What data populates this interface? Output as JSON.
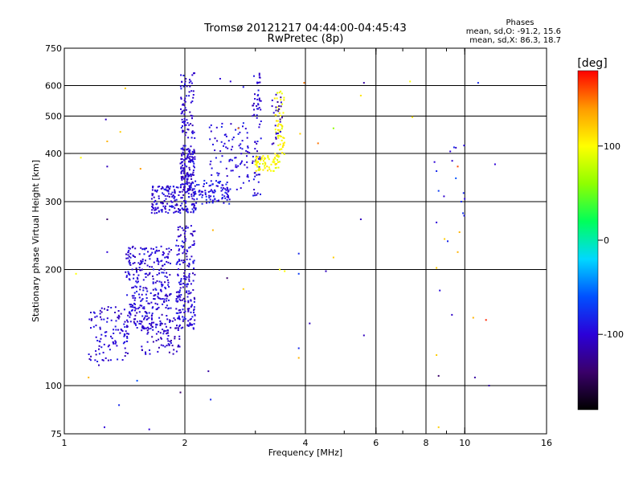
{
  "chart_data": {
    "type": "scatter",
    "title": "Tromsø 20121217 04:44:00-04:45:43",
    "subtitle": "RwPretec (8p)",
    "xlabel": "Frequency [MHz]",
    "ylabel": "Stationary phase Virtual Height [km]",
    "x_scale": "log",
    "y_scale": "log",
    "xlim": [
      1,
      16
    ],
    "ylim": [
      75,
      750
    ],
    "x_ticks": [
      {
        "value": 1,
        "label": "1"
      },
      {
        "value": 2,
        "label": "2"
      },
      {
        "value": 4,
        "label": "4"
      },
      {
        "value": 6,
        "label": "6"
      },
      {
        "value": 8,
        "label": "8"
      },
      {
        "value": 10,
        "label": "10"
      },
      {
        "value": 16,
        "label": "16"
      }
    ],
    "x_gridlines": [
      2,
      4,
      6,
      8,
      10
    ],
    "y_ticks": [
      {
        "value": 75,
        "label": "75"
      },
      {
        "value": 100,
        "label": "100"
      },
      {
        "value": 200,
        "label": "200"
      },
      {
        "value": 300,
        "label": "300"
      },
      {
        "value": 400,
        "label": "400"
      },
      {
        "value": 500,
        "label": "500"
      },
      {
        "value": 600,
        "label": "600"
      },
      {
        "value": 750,
        "label": "750"
      }
    ],
    "y_gridlines": [
      100,
      200,
      300,
      400,
      500,
      600
    ],
    "stats": {
      "title": "Phases",
      "line_o": "mean, sd,O: -91.2, 15.6",
      "line_x": "mean, sd,X: 86.3, 18.7"
    },
    "colorbar": {
      "label": "[deg]",
      "range": [
        -180,
        180
      ],
      "ticks": [
        {
          "value": 100,
          "label": "100"
        },
        {
          "value": 0,
          "label": "0"
        },
        {
          "value": -100,
          "label": "-100"
        }
      ],
      "color_stops": [
        "#000000",
        "#3a006a",
        "#2b00d8",
        "#0050ff",
        "#00d8ff",
        "#00ff5a",
        "#8fff00",
        "#ffff00",
        "#ff9a00",
        "#ff0000"
      ]
    },
    "clusters": [
      {
        "f": [
          1.15,
          1.45
        ],
        "h": [
          115,
          160
        ],
        "phase": -100,
        "n": 110
      },
      {
        "f": [
          1.42,
          1.85
        ],
        "h": [
          140,
          230
        ],
        "phase": -100,
        "n": 320
      },
      {
        "f": [
          1.55,
          1.95
        ],
        "h": [
          120,
          150
        ],
        "phase": -105,
        "n": 90
      },
      {
        "f": [
          1.9,
          2.12
        ],
        "h": [
          140,
          260
        ],
        "phase": -100,
        "n": 200
      },
      {
        "f": [
          1.65,
          2.15
        ],
        "h": [
          280,
          330
        ],
        "phase": -100,
        "n": 180
      },
      {
        "f": [
          1.95,
          2.12
        ],
        "h": [
          320,
          420
        ],
        "phase": -100,
        "n": 140
      },
      {
        "f": [
          1.95,
          2.12
        ],
        "h": [
          430,
          650
        ],
        "phase": -100,
        "n": 80
      },
      {
        "f": [
          2.1,
          2.6
        ],
        "h": [
          295,
          340
        ],
        "phase": -90,
        "n": 90
      },
      {
        "f": [
          2.3,
          2.9
        ],
        "h": [
          320,
          480
        ],
        "phase": -95,
        "n": 90
      },
      {
        "f": [
          2.95,
          3.1
        ],
        "h": [
          300,
          650
        ],
        "phase": -100,
        "n": 70
      },
      {
        "f": [
          3.0,
          3.45
        ],
        "h": [
          360,
          395
        ],
        "phase": 100,
        "n": 70
      },
      {
        "f": [
          3.35,
          3.55
        ],
        "h": [
          380,
          580
        ],
        "phase": 100,
        "n": 60
      },
      {
        "f": [
          3.3,
          3.5
        ],
        "h": [
          420,
          570
        ],
        "phase": -110,
        "n": 25
      },
      {
        "f": [
          8.3,
          10.0
        ],
        "h": [
          150,
          420
        ],
        "phase": -95,
        "n": 10
      }
    ],
    "points": [
      {
        "f": 1.07,
        "h": 195,
        "phase": 100
      },
      {
        "f": 1.1,
        "h": 390,
        "phase": 100
      },
      {
        "f": 1.27,
        "h": 490,
        "phase": -110
      },
      {
        "f": 1.28,
        "h": 370,
        "phase": -110
      },
      {
        "f": 1.28,
        "h": 270,
        "phase": -140
      },
      {
        "f": 1.28,
        "h": 222,
        "phase": -100
      },
      {
        "f": 1.42,
        "h": 590,
        "phase": 120
      },
      {
        "f": 1.38,
        "h": 455,
        "phase": 120
      },
      {
        "f": 1.28,
        "h": 430,
        "phase": 130
      },
      {
        "f": 1.26,
        "h": 78,
        "phase": -100
      },
      {
        "f": 1.37,
        "h": 89,
        "phase": -80
      },
      {
        "f": 1.52,
        "h": 103,
        "phase": -60
      },
      {
        "f": 1.63,
        "h": 77,
        "phase": -100
      },
      {
        "f": 1.95,
        "h": 96,
        "phase": -140
      },
      {
        "f": 2.29,
        "h": 109,
        "phase": -120
      },
      {
        "f": 2.32,
        "h": 92,
        "phase": -80
      },
      {
        "f": 2.55,
        "h": 190,
        "phase": -140
      },
      {
        "f": 2.8,
        "h": 178,
        "phase": 120
      },
      {
        "f": 2.35,
        "h": 253,
        "phase": 130
      },
      {
        "f": 2.6,
        "h": 615,
        "phase": -100
      },
      {
        "f": 2.45,
        "h": 625,
        "phase": -100
      },
      {
        "f": 2.8,
        "h": 595,
        "phase": -90
      },
      {
        "f": 2.72,
        "h": 465,
        "phase": 150
      },
      {
        "f": 3.97,
        "h": 610,
        "phase": 150
      },
      {
        "f": 3.88,
        "h": 450,
        "phase": 120
      },
      {
        "f": 4.3,
        "h": 425,
        "phase": 150
      },
      {
        "f": 4.7,
        "h": 465,
        "phase": 60
      },
      {
        "f": 5.6,
        "h": 610,
        "phase": -120
      },
      {
        "f": 5.5,
        "h": 565,
        "phase": 110
      },
      {
        "f": 7.3,
        "h": 615,
        "phase": 100
      },
      {
        "f": 7.4,
        "h": 497,
        "phase": 110
      },
      {
        "f": 3.85,
        "h": 220,
        "phase": -80
      },
      {
        "f": 3.85,
        "h": 195,
        "phase": -70
      },
      {
        "f": 3.55,
        "h": 198,
        "phase": 100
      },
      {
        "f": 3.45,
        "h": 200,
        "phase": 100
      },
      {
        "f": 4.1,
        "h": 145,
        "phase": -110
      },
      {
        "f": 4.5,
        "h": 198,
        "phase": -110
      },
      {
        "f": 4.7,
        "h": 215,
        "phase": 120
      },
      {
        "f": 5.5,
        "h": 270,
        "phase": -110
      },
      {
        "f": 5.6,
        "h": 135,
        "phase": -110
      },
      {
        "f": 3.85,
        "h": 118,
        "phase": 130
      },
      {
        "f": 3.85,
        "h": 125,
        "phase": -80
      },
      {
        "f": 8.4,
        "h": 380,
        "phase": -100
      },
      {
        "f": 8.5,
        "h": 360,
        "phase": -80
      },
      {
        "f": 8.6,
        "h": 320,
        "phase": -70
      },
      {
        "f": 8.5,
        "h": 265,
        "phase": -100
      },
      {
        "f": 8.9,
        "h": 240,
        "phase": 120
      },
      {
        "f": 9.2,
        "h": 405,
        "phase": -100
      },
      {
        "f": 9.4,
        "h": 415,
        "phase": -80
      },
      {
        "f": 9.6,
        "h": 370,
        "phase": 160
      },
      {
        "f": 9.8,
        "h": 300,
        "phase": -80
      },
      {
        "f": 9.9,
        "h": 280,
        "phase": -75
      },
      {
        "f": 9.7,
        "h": 250,
        "phase": 130
      },
      {
        "f": 9.6,
        "h": 222,
        "phase": 130
      },
      {
        "f": 9.5,
        "h": 345,
        "phase": -60
      },
      {
        "f": 8.5,
        "h": 202,
        "phase": 120
      },
      {
        "f": 8.5,
        "h": 120,
        "phase": 120
      },
      {
        "f": 8.6,
        "h": 106,
        "phase": -140
      },
      {
        "f": 8.6,
        "h": 78,
        "phase": 120
      },
      {
        "f": 10.8,
        "h": 610,
        "phase": -80
      },
      {
        "f": 11.9,
        "h": 375,
        "phase": -100
      },
      {
        "f": 11.3,
        "h": 148,
        "phase": 170
      },
      {
        "f": 10.6,
        "h": 105,
        "phase": -120
      },
      {
        "f": 11.5,
        "h": 100,
        "phase": -120
      },
      {
        "f": 10.5,
        "h": 150,
        "phase": 130
      },
      {
        "f": 1.55,
        "h": 365,
        "phase": 140
      },
      {
        "f": 1.15,
        "h": 105,
        "phase": 130
      },
      {
        "f": 1.22,
        "h": 113,
        "phase": -110
      }
    ]
  }
}
